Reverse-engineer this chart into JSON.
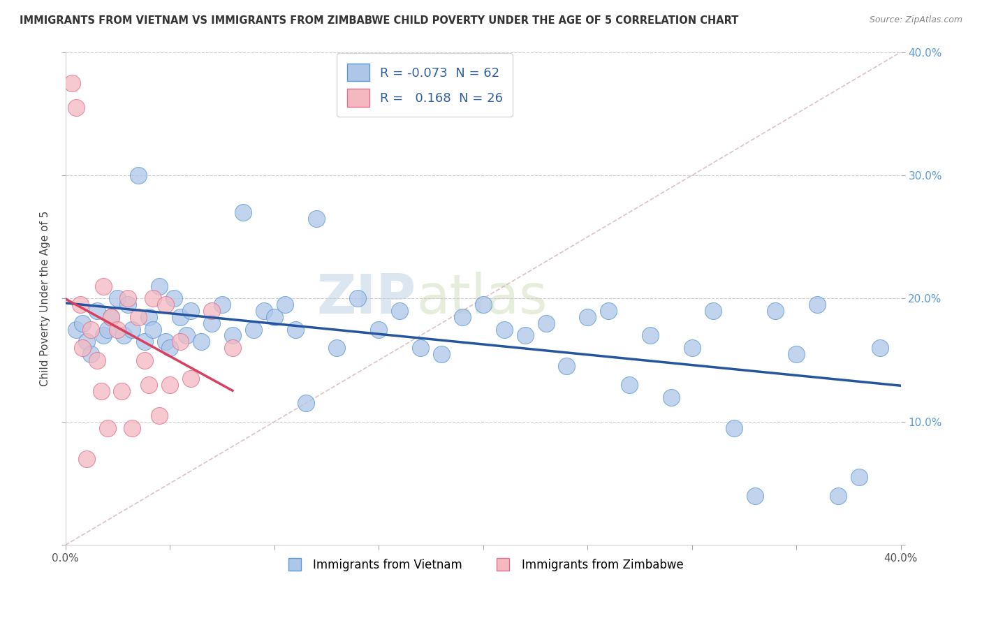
{
  "title": "IMMIGRANTS FROM VIETNAM VS IMMIGRANTS FROM ZIMBABWE CHILD POVERTY UNDER THE AGE OF 5 CORRELATION CHART",
  "source": "Source: ZipAtlas.com",
  "ylabel": "Child Poverty Under the Age of 5",
  "xlim": [
    0.0,
    0.4
  ],
  "ylim": [
    0.0,
    0.4
  ],
  "yticks": [
    0.0,
    0.1,
    0.2,
    0.3,
    0.4
  ],
  "xticks": [
    0.0,
    0.05,
    0.1,
    0.15,
    0.2,
    0.25,
    0.3,
    0.35,
    0.4
  ],
  "xtick_labels_show": [
    "0.0%",
    "",
    "",
    "",
    "",
    "",
    "",
    "",
    "40.0%"
  ],
  "right_ytick_labels": [
    "",
    "10.0%",
    "20.0%",
    "30.0%",
    "40.0%"
  ],
  "vietnam_color": "#aec6e8",
  "vietnam_edge": "#5b9bd5",
  "zimbabwe_color": "#f4b8c1",
  "zimbabwe_edge": "#e07090",
  "trendline_vietnam_color": "#2655a0",
  "trendline_zimbabwe_color": "#d94060",
  "watermark_zip": "ZIP",
  "watermark_atlas": "atlas",
  "legend_R_vietnam": "-0.073",
  "legend_N_vietnam": "62",
  "legend_R_zimbabwe": "0.168",
  "legend_N_zimbabwe": "26",
  "vietnam_x": [
    0.005,
    0.008,
    0.01,
    0.012,
    0.015,
    0.018,
    0.02,
    0.022,
    0.025,
    0.028,
    0.03,
    0.032,
    0.035,
    0.038,
    0.04,
    0.042,
    0.045,
    0.048,
    0.05,
    0.052,
    0.055,
    0.058,
    0.06,
    0.065,
    0.07,
    0.075,
    0.08,
    0.085,
    0.09,
    0.095,
    0.1,
    0.105,
    0.11,
    0.115,
    0.12,
    0.13,
    0.14,
    0.15,
    0.16,
    0.17,
    0.18,
    0.19,
    0.2,
    0.21,
    0.22,
    0.23,
    0.24,
    0.25,
    0.26,
    0.27,
    0.28,
    0.29,
    0.3,
    0.31,
    0.32,
    0.33,
    0.34,
    0.35,
    0.36,
    0.37,
    0.38,
    0.39
  ],
  "vietnam_y": [
    0.175,
    0.18,
    0.165,
    0.155,
    0.19,
    0.17,
    0.175,
    0.185,
    0.2,
    0.17,
    0.195,
    0.175,
    0.3,
    0.165,
    0.185,
    0.175,
    0.21,
    0.165,
    0.16,
    0.2,
    0.185,
    0.17,
    0.19,
    0.165,
    0.18,
    0.195,
    0.17,
    0.27,
    0.175,
    0.19,
    0.185,
    0.195,
    0.175,
    0.115,
    0.265,
    0.16,
    0.2,
    0.175,
    0.19,
    0.16,
    0.155,
    0.185,
    0.195,
    0.175,
    0.17,
    0.18,
    0.145,
    0.185,
    0.19,
    0.13,
    0.17,
    0.12,
    0.16,
    0.19,
    0.095,
    0.04,
    0.19,
    0.155,
    0.195,
    0.04,
    0.055,
    0.16
  ],
  "zimbabwe_x": [
    0.003,
    0.005,
    0.007,
    0.008,
    0.01,
    0.012,
    0.015,
    0.017,
    0.018,
    0.02,
    0.022,
    0.025,
    0.027,
    0.03,
    0.032,
    0.035,
    0.038,
    0.04,
    0.042,
    0.045,
    0.048,
    0.05,
    0.055,
    0.06,
    0.07,
    0.08
  ],
  "zimbabwe_y": [
    0.375,
    0.355,
    0.195,
    0.16,
    0.07,
    0.175,
    0.15,
    0.125,
    0.21,
    0.095,
    0.185,
    0.175,
    0.125,
    0.2,
    0.095,
    0.185,
    0.15,
    0.13,
    0.2,
    0.105,
    0.195,
    0.13,
    0.165,
    0.135,
    0.19,
    0.16
  ]
}
